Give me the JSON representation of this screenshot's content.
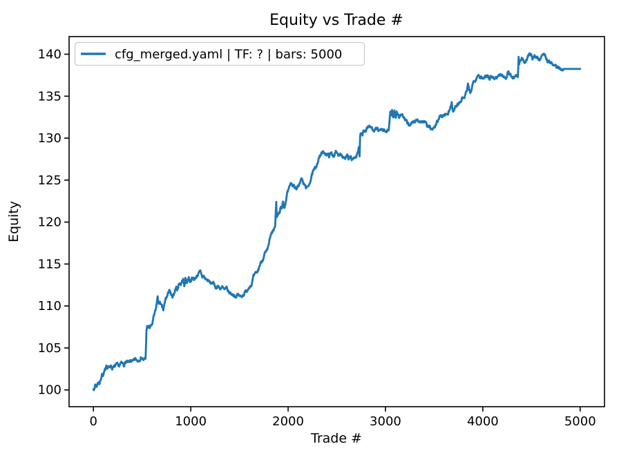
{
  "window": {
    "background": "#ffffff"
  },
  "chart_data": {
    "type": "line",
    "title": "Equity vs Trade #",
    "xlabel": "Trade #",
    "ylabel": "Equity",
    "xlim": [
      -250,
      5250
    ],
    "ylim": [
      98.0,
      142.1
    ],
    "xticks": [
      0,
      1000,
      2000,
      3000,
      4000,
      5000
    ],
    "yticks": [
      100,
      105,
      110,
      115,
      120,
      125,
      130,
      135,
      140
    ],
    "grid": false,
    "legend_position": "upper left",
    "axis_color": "#000000",
    "series": [
      {
        "name": "cfg_merged.yaml | TF: ? | bars: 5000",
        "color": "#1f77b4",
        "noise_sigma": 0.16,
        "noise_flat_after_x": 4830,
        "points": [
          [
            0,
            100.25
          ],
          [
            10,
            100.0
          ],
          [
            18,
            100.65
          ],
          [
            28,
            100.3
          ],
          [
            50,
            101.0
          ],
          [
            63,
            100.7
          ],
          [
            87,
            101.9
          ],
          [
            99,
            101.6
          ],
          [
            122,
            102.4
          ],
          [
            134,
            103.1
          ],
          [
            146,
            102.6
          ],
          [
            160,
            102.7
          ],
          [
            181,
            102.9
          ],
          [
            193,
            102.6
          ],
          [
            217,
            102.75
          ],
          [
            241,
            103.0
          ],
          [
            264,
            102.85
          ],
          [
            288,
            103.2
          ],
          [
            311,
            103.0
          ],
          [
            335,
            103.35
          ],
          [
            358,
            103.2
          ],
          [
            382,
            103.5
          ],
          [
            406,
            103.35
          ],
          [
            429,
            103.65
          ],
          [
            453,
            103.5
          ],
          [
            476,
            103.7
          ],
          [
            500,
            103.85
          ],
          [
            515,
            103.6
          ],
          [
            535,
            103.65
          ],
          [
            541,
            105.5
          ],
          [
            545,
            107.2
          ],
          [
            552,
            107.6
          ],
          [
            560,
            107.25
          ],
          [
            568,
            107.6
          ],
          [
            578,
            107.4
          ],
          [
            590,
            107.6
          ],
          [
            605,
            107.9
          ],
          [
            622,
            108.8
          ],
          [
            637,
            109.4
          ],
          [
            648,
            110.1
          ],
          [
            655,
            110.7
          ],
          [
            660,
            111.2
          ],
          [
            668,
            110.4
          ],
          [
            672,
            110.2
          ],
          [
            684,
            110.55
          ],
          [
            695,
            110.1
          ],
          [
            706,
            109.8
          ],
          [
            718,
            109.5
          ],
          [
            731,
            110.2
          ],
          [
            743,
            110.9
          ],
          [
            755,
            111.1
          ],
          [
            766,
            111.4
          ],
          [
            779,
            112.0
          ],
          [
            790,
            111.5
          ],
          [
            803,
            111.2
          ],
          [
            814,
            110.9
          ],
          [
            826,
            111.4
          ],
          [
            838,
            111.9
          ],
          [
            850,
            112.25
          ],
          [
            861,
            111.9
          ],
          [
            873,
            112.45
          ],
          [
            885,
            112.75
          ],
          [
            897,
            112.6
          ],
          [
            910,
            112.9
          ],
          [
            921,
            113.1
          ],
          [
            933,
            112.35
          ],
          [
            944,
            113.3
          ],
          [
            956,
            112.75
          ],
          [
            968,
            113.1
          ],
          [
            980,
            113.4
          ],
          [
            992,
            113.0
          ],
          [
            1015,
            113.3
          ],
          [
            1039,
            113.2
          ],
          [
            1062,
            113.6
          ],
          [
            1086,
            113.9
          ],
          [
            1098,
            114.1
          ],
          [
            1110,
            113.8
          ],
          [
            1121,
            113.4
          ],
          [
            1133,
            113.55
          ],
          [
            1145,
            113.3
          ],
          [
            1168,
            113.1
          ],
          [
            1180,
            113.0
          ],
          [
            1204,
            112.7
          ],
          [
            1228,
            112.8
          ],
          [
            1240,
            112.5
          ],
          [
            1263,
            112.2
          ],
          [
            1275,
            112.4
          ],
          [
            1298,
            112.1
          ],
          [
            1322,
            112.25
          ],
          [
            1345,
            111.9
          ],
          [
            1369,
            112.1
          ],
          [
            1392,
            111.6
          ],
          [
            1416,
            111.45
          ],
          [
            1440,
            111.3
          ],
          [
            1463,
            111.15
          ],
          [
            1487,
            111.35
          ],
          [
            1510,
            111.1
          ],
          [
            1534,
            111.3
          ],
          [
            1557,
            111.6
          ],
          [
            1580,
            111.9
          ],
          [
            1604,
            112.4
          ],
          [
            1628,
            112.6
          ],
          [
            1641,
            113.4
          ],
          [
            1664,
            113.8
          ],
          [
            1688,
            114.1
          ],
          [
            1712,
            115.0
          ],
          [
            1735,
            115.45
          ],
          [
            1759,
            116.2
          ],
          [
            1783,
            116.5
          ],
          [
            1794,
            116.9
          ],
          [
            1806,
            117.7
          ],
          [
            1818,
            118.2
          ],
          [
            1830,
            118.6
          ],
          [
            1855,
            119.1
          ],
          [
            1868,
            119.5
          ],
          [
            1878,
            122.35
          ],
          [
            1884,
            120.6
          ],
          [
            1896,
            120.9
          ],
          [
            1912,
            121.1
          ],
          [
            1924,
            121.9
          ],
          [
            1936,
            121.6
          ],
          [
            1948,
            122.5
          ],
          [
            1960,
            121.7
          ],
          [
            1971,
            122.1
          ],
          [
            1995,
            123.7
          ],
          [
            2019,
            124.6
          ],
          [
            2042,
            124.4
          ],
          [
            2065,
            124.3
          ],
          [
            2089,
            123.85
          ],
          [
            2124,
            124.8
          ],
          [
            2137,
            125.2
          ],
          [
            2161,
            124.5
          ],
          [
            2183,
            124.2
          ],
          [
            2195,
            124.0
          ],
          [
            2231,
            125.0
          ],
          [
            2254,
            125.9
          ],
          [
            2278,
            126.4
          ],
          [
            2301,
            127.1
          ],
          [
            2325,
            127.8
          ],
          [
            2348,
            128.2
          ],
          [
            2372,
            128.3
          ],
          [
            2395,
            128.1
          ],
          [
            2419,
            127.9
          ],
          [
            2443,
            128.2
          ],
          [
            2467,
            127.9
          ],
          [
            2490,
            128.3
          ],
          [
            2514,
            128.0
          ],
          [
            2538,
            128.2
          ],
          [
            2561,
            127.9
          ],
          [
            2585,
            127.6
          ],
          [
            2608,
            128.0
          ],
          [
            2620,
            127.4
          ],
          [
            2644,
            127.7
          ],
          [
            2660,
            127.3
          ],
          [
            2680,
            127.75
          ],
          [
            2700,
            127.6
          ],
          [
            2726,
            129.0
          ],
          [
            2734,
            127.9
          ],
          [
            2740,
            130.4
          ],
          [
            2752,
            130.6
          ],
          [
            2764,
            130.3
          ],
          [
            2774,
            131.0
          ],
          [
            2798,
            130.9
          ],
          [
            2821,
            131.4
          ],
          [
            2845,
            131.3
          ],
          [
            2869,
            131.1
          ],
          [
            2892,
            131.0
          ],
          [
            2916,
            131.15
          ],
          [
            2940,
            130.8
          ],
          [
            2963,
            131.0
          ],
          [
            2987,
            130.8
          ],
          [
            3010,
            130.7
          ],
          [
            3034,
            131.1
          ],
          [
            3050,
            133.0
          ],
          [
            3060,
            132.6
          ],
          [
            3068,
            133.25
          ],
          [
            3080,
            132.4
          ],
          [
            3092,
            133.1
          ],
          [
            3105,
            132.4
          ],
          [
            3115,
            133.2
          ],
          [
            3130,
            132.9
          ],
          [
            3142,
            132.5
          ],
          [
            3163,
            132.9
          ],
          [
            3175,
            132.7
          ],
          [
            3199,
            132.2
          ],
          [
            3222,
            131.8
          ],
          [
            3246,
            131.6
          ],
          [
            3269,
            131.8
          ],
          [
            3293,
            131.9
          ],
          [
            3316,
            132.1
          ],
          [
            3328,
            132.2
          ],
          [
            3340,
            132.1
          ],
          [
            3364,
            131.9
          ],
          [
            3388,
            132.0
          ],
          [
            3411,
            131.8
          ],
          [
            3435,
            131.4
          ],
          [
            3460,
            131.2
          ],
          [
            3482,
            131.0
          ],
          [
            3506,
            131.25
          ],
          [
            3529,
            131.9
          ],
          [
            3553,
            132.5
          ],
          [
            3576,
            132.6
          ],
          [
            3600,
            132.8
          ],
          [
            3624,
            132.9
          ],
          [
            3647,
            133.1
          ],
          [
            3659,
            133.2
          ],
          [
            3680,
            134.4
          ],
          [
            3694,
            133.2
          ],
          [
            3706,
            133.4
          ],
          [
            3718,
            133.7
          ],
          [
            3741,
            134.0
          ],
          [
            3765,
            134.2
          ],
          [
            3788,
            134.7
          ],
          [
            3812,
            134.85
          ],
          [
            3835,
            135.6
          ],
          [
            3847,
            136.3
          ],
          [
            3871,
            135.3
          ],
          [
            3882,
            135.8
          ],
          [
            3906,
            136.8
          ],
          [
            3930,
            137.1
          ],
          [
            3953,
            137.6
          ],
          [
            3977,
            137.2
          ],
          [
            4000,
            137.05
          ],
          [
            4024,
            137.4
          ],
          [
            4047,
            137.5
          ],
          [
            4071,
            137.2
          ],
          [
            4094,
            137.4
          ],
          [
            4118,
            137.1
          ],
          [
            4141,
            137.25
          ],
          [
            4180,
            137.6
          ],
          [
            4214,
            137.3
          ],
          [
            4238,
            137.2
          ],
          [
            4261,
            137.9
          ],
          [
            4285,
            137.5
          ],
          [
            4309,
            137.2
          ],
          [
            4340,
            137.5
          ],
          [
            4360,
            137.4
          ],
          [
            4368,
            139.7
          ],
          [
            4375,
            138.7
          ],
          [
            4385,
            139.2
          ],
          [
            4404,
            139.5
          ],
          [
            4420,
            139.2
          ],
          [
            4439,
            139.0
          ],
          [
            4458,
            139.5
          ],
          [
            4475,
            139.9
          ],
          [
            4490,
            140.0
          ],
          [
            4510,
            139.6
          ],
          [
            4530,
            139.8
          ],
          [
            4546,
            139.7
          ],
          [
            4565,
            139.5
          ],
          [
            4581,
            139.3
          ],
          [
            4600,
            139.8
          ],
          [
            4620,
            140.05
          ],
          [
            4640,
            139.8
          ],
          [
            4664,
            139.2
          ],
          [
            4688,
            139.1
          ],
          [
            4712,
            138.8
          ],
          [
            4735,
            138.7
          ],
          [
            4759,
            138.5
          ],
          [
            4783,
            138.4
          ],
          [
            4810,
            138.3
          ],
          [
            4830,
            138.25
          ],
          [
            5000,
            138.25
          ]
        ]
      }
    ],
    "legend": {
      "border_color": "#cccccc",
      "background": "rgba(255,255,255,0.8)"
    }
  }
}
